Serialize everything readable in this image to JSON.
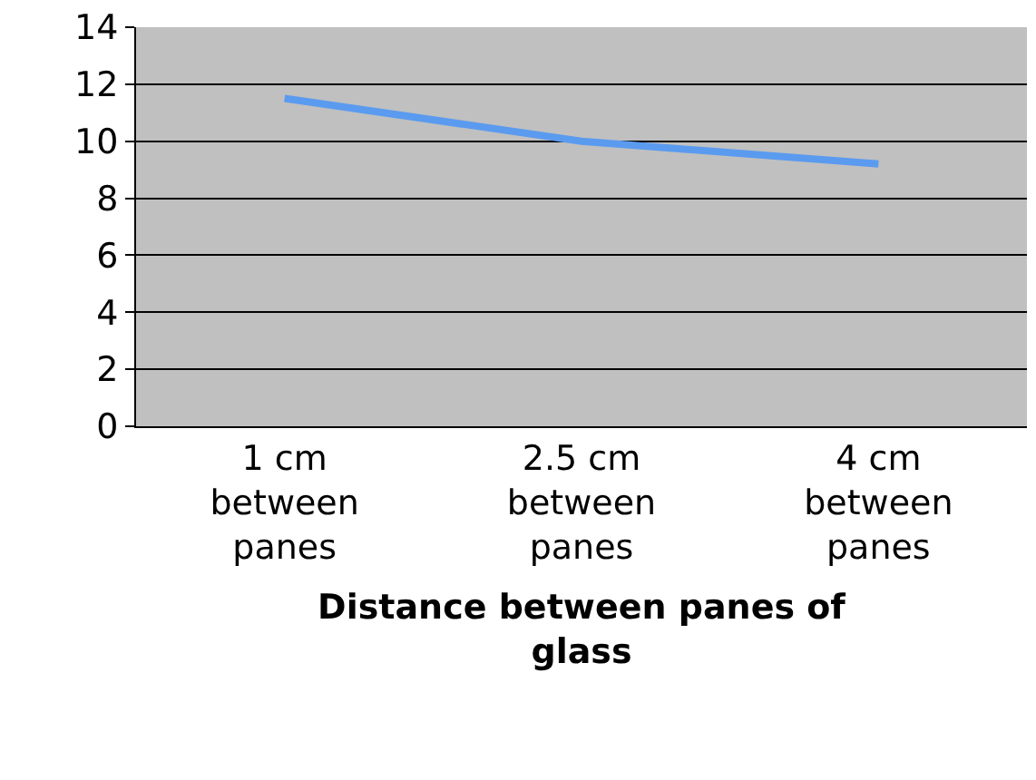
{
  "chart_data": {
    "type": "line",
    "xlabel": "Distance between panes of\nglass",
    "categories": [
      "1 cm\nbetween\npanes",
      "2.5 cm\nbetween\npanes",
      "4 cm\nbetween\npanes"
    ],
    "series": [
      {
        "color": "#5b9bef",
        "values": [
          11.5,
          10.0,
          9.2
        ]
      }
    ],
    "ylim": [
      0,
      14
    ],
    "yticks": [
      0,
      2,
      4,
      6,
      8,
      10,
      12,
      14
    ],
    "grid": "y",
    "marker": "none",
    "line_style": "solid"
  }
}
